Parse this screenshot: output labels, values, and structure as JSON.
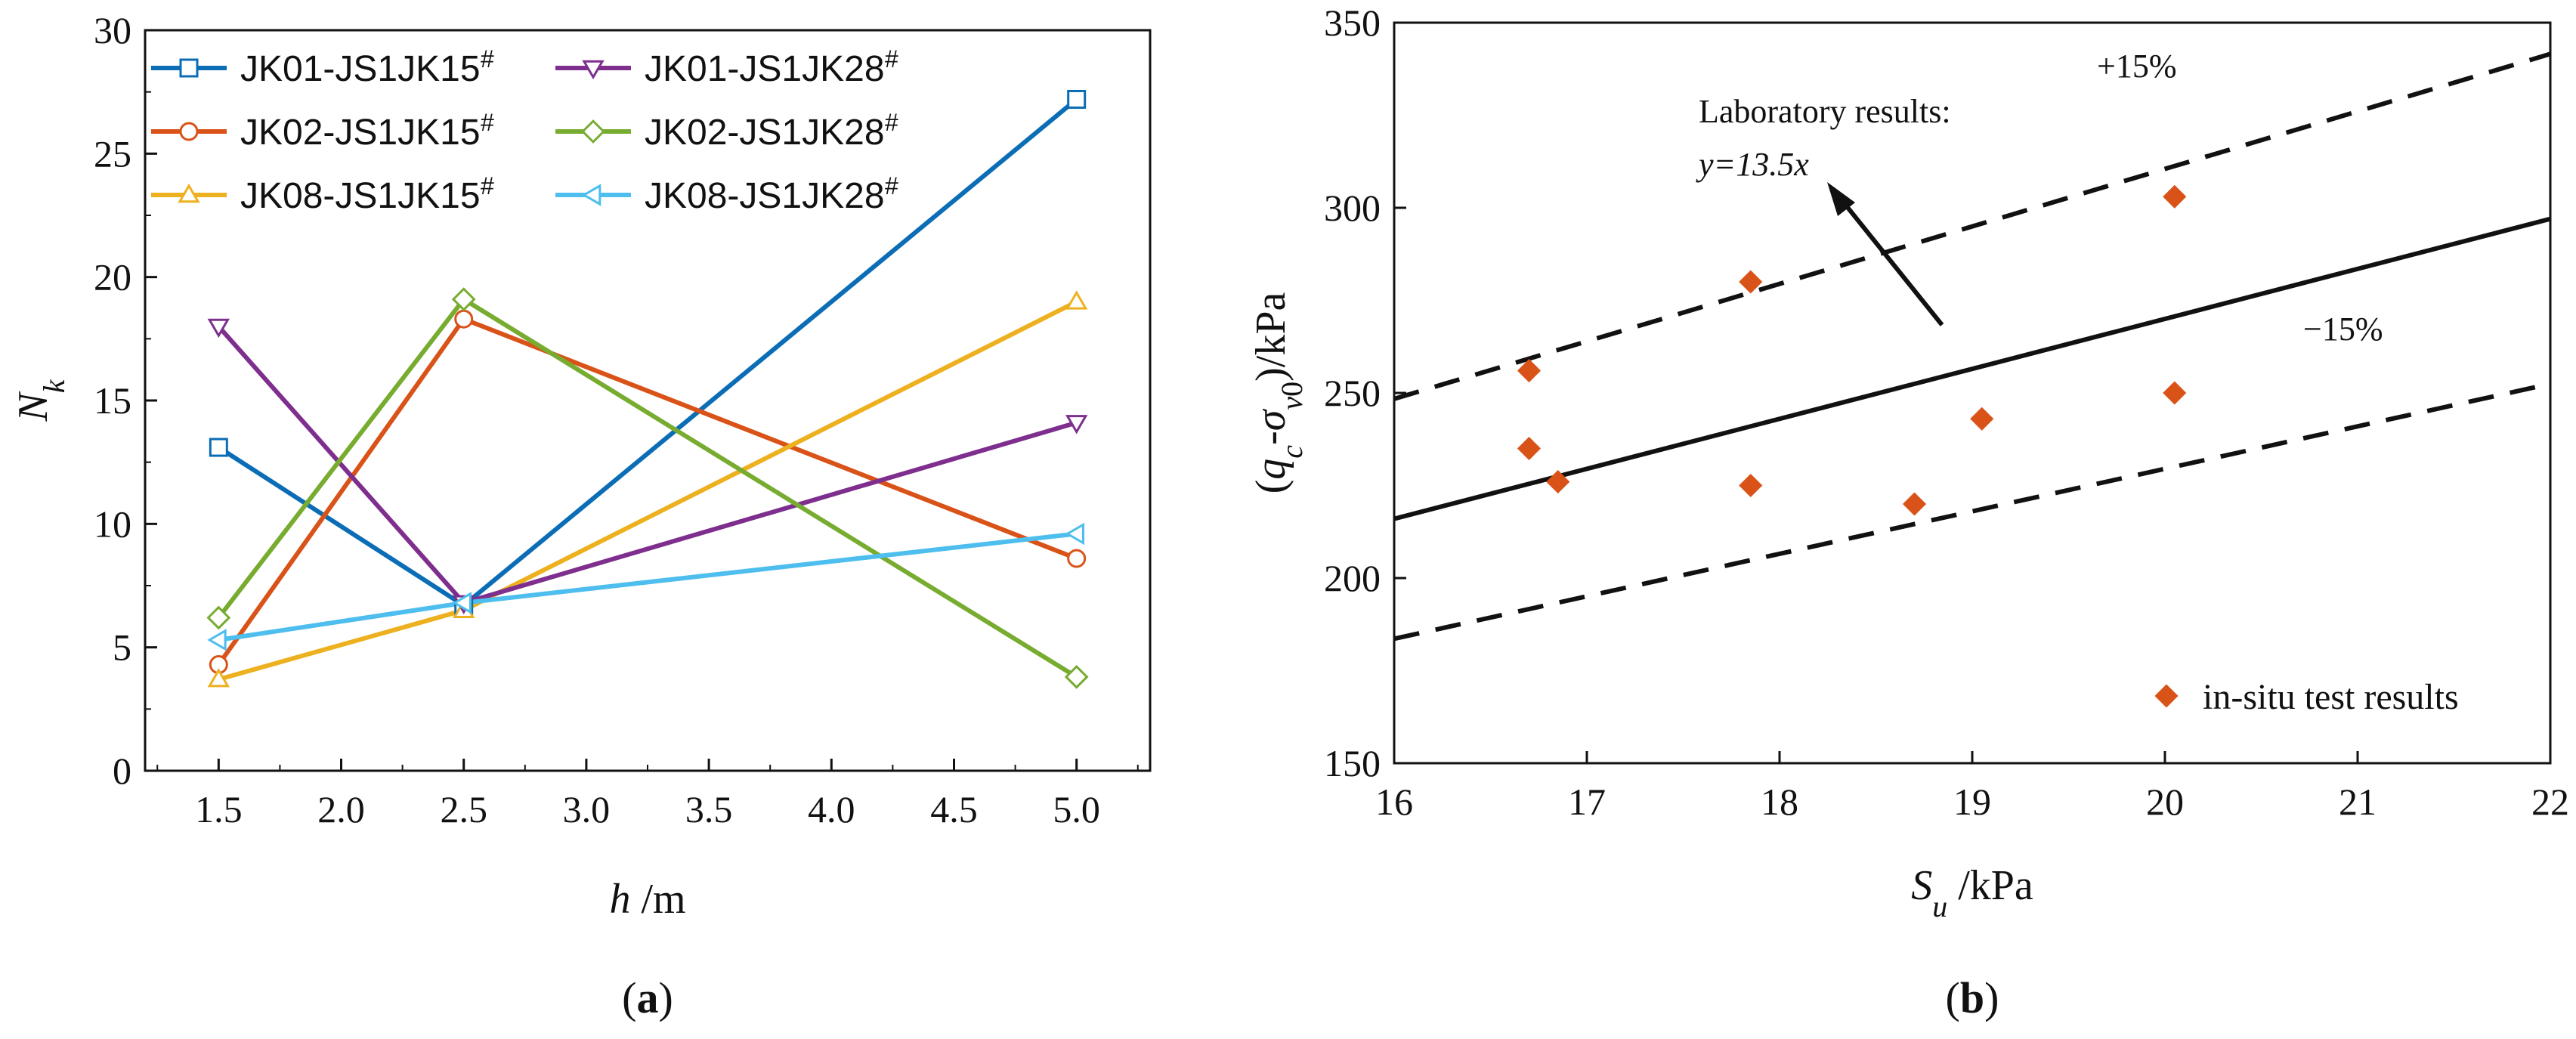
{
  "chart_data": [
    {
      "type": "line",
      "panel_label": "(a)",
      "xlabel": "h /m",
      "ylabel": "N_k",
      "x": [
        1.5,
        2.5,
        5.0
      ],
      "xlim": [
        1.2,
        5.3
      ],
      "ylim": [
        0,
        30
      ],
      "xticks": [
        "1.5",
        "2.0",
        "2.5",
        "3.0",
        "3.5",
        "4.0",
        "4.5",
        "5.0"
      ],
      "yticks": [
        "0",
        "5",
        "10",
        "15",
        "20",
        "25",
        "30"
      ],
      "series": [
        {
          "name": "JK01-JS1JK15#",
          "color": "#0b6db5",
          "marker": "square",
          "values": [
            13.1,
            6.7,
            27.2
          ]
        },
        {
          "name": "JK02-JS1JK15#",
          "color": "#d95319",
          "marker": "circle",
          "values": [
            4.3,
            18.3,
            8.6
          ]
        },
        {
          "name": "JK08-JS1JK15#",
          "color": "#edb120",
          "marker": "triangle-up",
          "values": [
            3.7,
            6.5,
            19.0
          ]
        },
        {
          "name": "JK01-JS1JK28#",
          "color": "#7e2f8e",
          "marker": "triangle-down",
          "values": [
            18.0,
            6.8,
            14.1
          ]
        },
        {
          "name": "JK02-JS1JK28#",
          "color": "#77ac30",
          "marker": "diamond",
          "values": [
            6.2,
            19.1,
            3.8
          ]
        },
        {
          "name": "JK08-JS1JK28#",
          "color": "#4dbeee",
          "marker": "triangle-left",
          "values": [
            5.3,
            6.8,
            9.6
          ]
        }
      ]
    },
    {
      "type": "scatter",
      "panel_label": "(b)",
      "xlabel": "S_u /kPa",
      "ylabel": "(q_c-σ_v0)/kPa",
      "xlim": [
        16,
        22
      ],
      "ylim": [
        150,
        350
      ],
      "xticks": [
        "16",
        "17",
        "18",
        "19",
        "20",
        "21",
        "22"
      ],
      "yticks": [
        "150",
        "200",
        "250",
        "300",
        "350"
      ],
      "legend": "in-situ test results",
      "points": {
        "color": "#d95319",
        "x": [
          16.7,
          16.7,
          16.85,
          17.85,
          17.85,
          18.7,
          19.05,
          20.05,
          20.05
        ],
        "y": [
          256,
          235,
          226,
          280,
          225,
          220,
          243,
          250,
          303
        ]
      },
      "lines": [
        {
          "name": "Laboratory results",
          "slope": 13.5,
          "style": "solid"
        },
        {
          "name": "+15%",
          "slope": 15.525,
          "style": "dashed"
        },
        {
          "name": "−15%",
          "slope": 11.475,
          "style": "dashed"
        }
      ],
      "annotations": {
        "lab_title": "Laboratory results:",
        "lab_eq": "y=13.5x",
        "plus": "+15%",
        "minus": "−15%"
      }
    }
  ]
}
